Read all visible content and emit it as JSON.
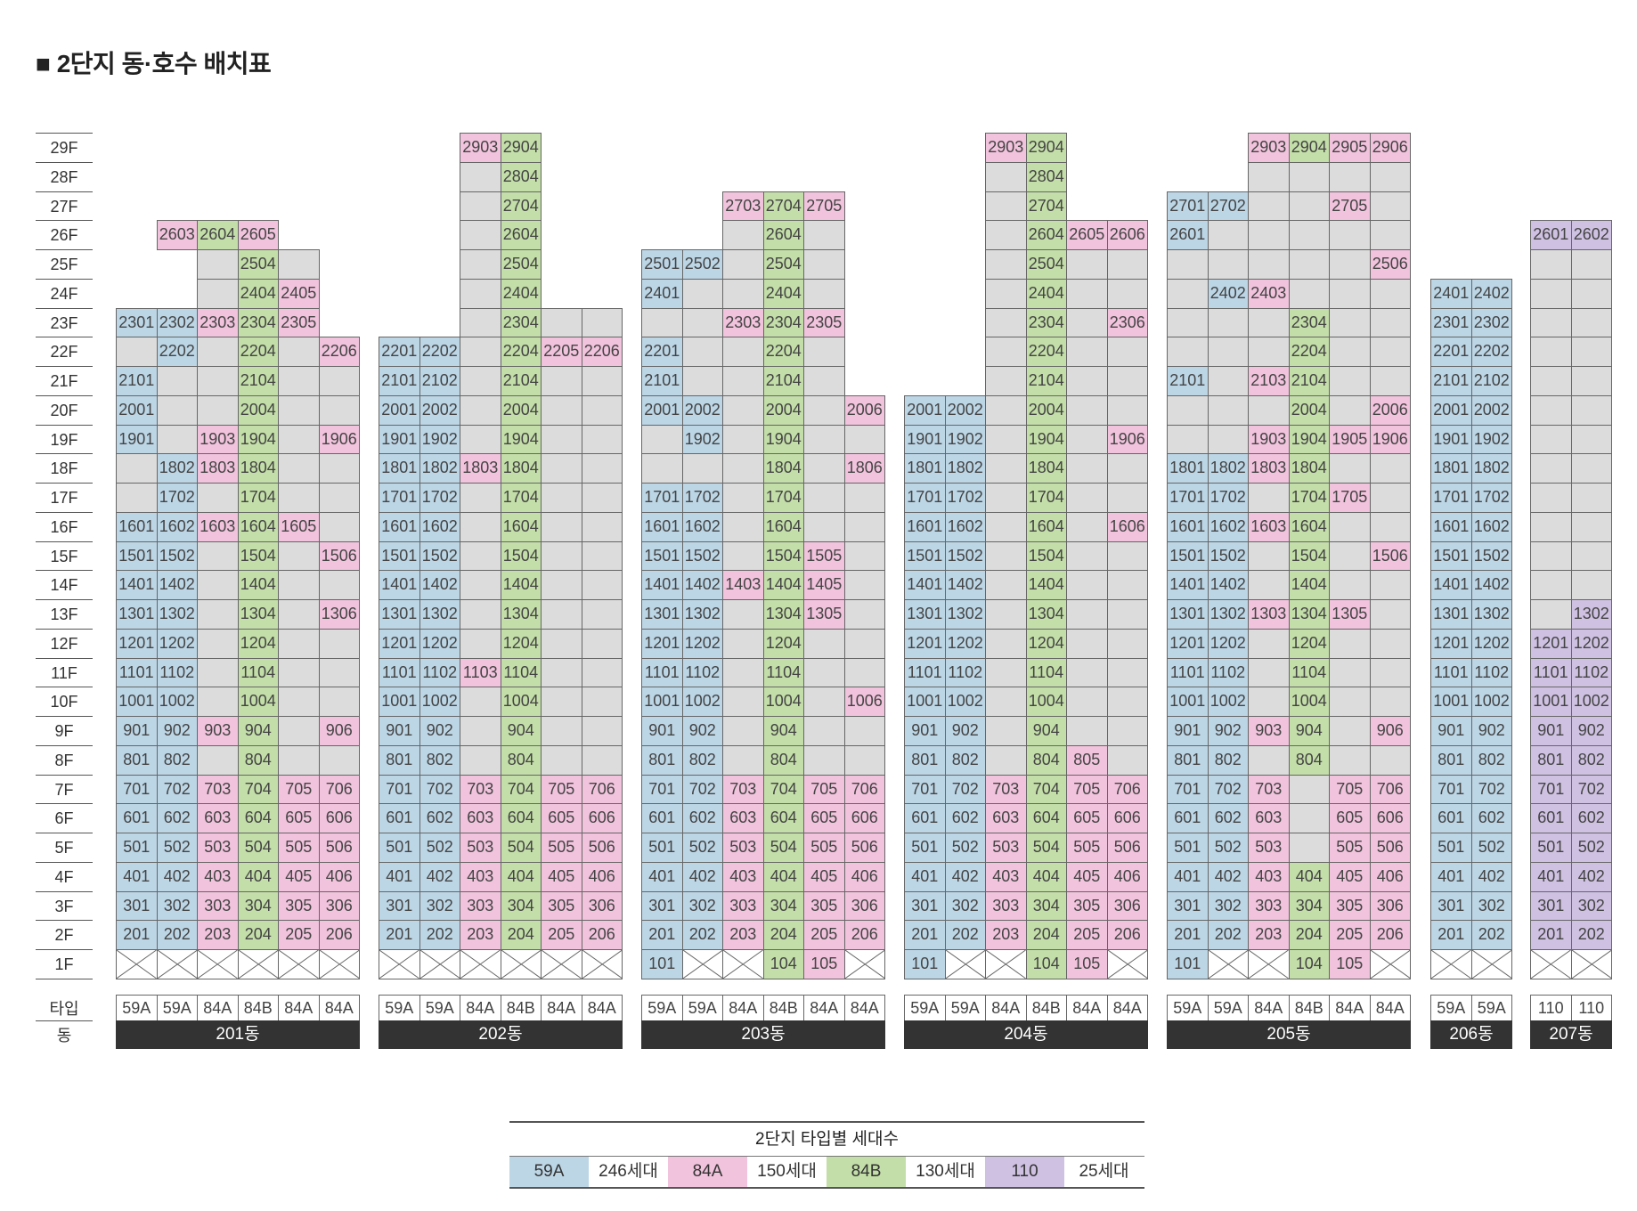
{
  "title": "■ 2단지 동·호수 배치표",
  "floors": [
    "29F",
    "28F",
    "27F",
    "26F",
    "25F",
    "24F",
    "23F",
    "22F",
    "21F",
    "20F",
    "19F",
    "18F",
    "17F",
    "16F",
    "15F",
    "14F",
    "13F",
    "12F",
    "11F",
    "10F",
    "9F",
    "8F",
    "7F",
    "6F",
    "5F",
    "4F",
    "3F",
    "2F",
    "1F"
  ],
  "type_row_label": "타입",
  "building_row_label": "동",
  "colors": {
    "59A": "#bcd6e6",
    "84A": "#f1c3dd",
    "84B": "#c3dea8",
    "110": "#cfc1e2",
    "empty": "#dcdcdc",
    "none": "#ffffff",
    "name_bar": "#333333"
  },
  "buildings": [
    {
      "name": "201동",
      "types": [
        "59A",
        "59A",
        "84A",
        "84B",
        "84A",
        "84A"
      ],
      "floors": {
        "26": "xx- xp:2603 xn:2604 xp:2605",
        "25": "xx- xx- xg- xn:2504 xg-",
        "24": "xx- xx- xg- xn:2404 xp:2405",
        "23": "xb:2301 xb:2302 xp:2303 xn:2304 xp:2305",
        "22": "xg- xb:2202 xg- xn:2204 xg- xp:2206",
        "21": "xb:2101 xg- xg- xn:2104 xg- xg-",
        "20": "xb:2001 xg- xg- xn:2004 xg- xg-",
        "19": "xb:1901 xg- xp:1903 xn:1904 xg- xp:1906",
        "18": "xg- xb:1802 xp:1803 xn:1804 xg- xg-",
        "17": "xg- xb:1702 xg- xn:1704 xg- xg-",
        "16": "xb:1601 xb:1602 xp:1603 xn:1604 xp:1605 xg-",
        "15": "xb:1501 xb:1502 xg- xn:1504 xg- xp:1506",
        "14": "xb:1401 xb:1402 xg- xn:1404 xg- xg-",
        "13": "xb:1301 xb:1302 xg- xn:1304 xg- xp:1306",
        "12": "xb:1201 xb:1202 xg- xn:1204 xg- xg-",
        "11": "xb:1101 xb:1102 xg- xn:1104 xg- xg-",
        "10": "xb:1001 xb:1002 xg- xn:1004 xg- xg-",
        "9": "xb:901 xb:902 xp:903 xn:904 xg- xp:906",
        "8": "xb:801 xb:802 xg- xn:804 xg- xg-",
        "7": "S",
        "6": "S",
        "5": "S",
        "4": "S",
        "3": "S",
        "2": "S",
        "1": "xx- xx- xx- xx- xx- xx-"
      }
    },
    {
      "name": "202동",
      "types": [
        "59A",
        "59A",
        "84A",
        "84B",
        "84A",
        "84A"
      ],
      "floors": {
        "29": "xx- xx- xp:2903 xn:2904",
        "28": "xx- xx- xg- xn:2804",
        "27": "xx- xx- xg- xn:2704",
        "26": "xx- xx- xg- xn:2604",
        "25": "xx- xx- xg- xn:2504",
        "24": "xx- xx- xg- xn:2404",
        "23": "xx- xx- xg- xn:2304 xg- xg-",
        "22": "xb:2201 xb:2202 xg- xn:2204 xp:2205 xp:2206",
        "21": "xb:2101 xb:2102 xg- xn:2104 xg- xg-",
        "20": "xb:2001 xb:2002 xg- xn:2004 xg- xg-",
        "19": "xb:1901 xb:1902 xg- xn:1904 xg- xg-",
        "18": "xb:1801 xb:1802 xp:1803 xn:1804 xg- xg-",
        "17": "xb:1701 xb:1702 xg- xn:1704 xg- xg-",
        "16": "xb:1601 xb:1602 xg- xn:1604 xg- xg-",
        "15": "xb:1501 xb:1502 xg- xn:1504 xg- xg-",
        "14": "xb:1401 xb:1402 xg- xn:1404 xg- xg-",
        "13": "xb:1301 xb:1302 xg- xn:1304 xg- xg-",
        "12": "xb:1201 xb:1202 xg- xn:1204 xg- xg-",
        "11": "xb:1101 xb:1102 xp:1103 xn:1104 xg- xg-",
        "10": "xb:1001 xb:1002 xg- xn:1004 xg- xg-",
        "9": "xb:901 xb:902 xg- xn:904 xg- xg-",
        "8": "xb:801 xb:802 xg- xn:804 xg- xg-",
        "7": "S",
        "6": "S",
        "5": "S",
        "4": "S",
        "3": "S",
        "2": "S",
        "1": "xx- xx- xx- xx- xx- xx-"
      }
    },
    {
      "name": "203동",
      "types": [
        "59A",
        "59A",
        "84A",
        "84B",
        "84A",
        "84A"
      ],
      "floors": {
        "27": "xx- xx- xp:2703 xn:2704 xp:2705",
        "26": "xx- xx- xg- xn:2604 xg-",
        "25": "xb:2501 xb:2502 xg- xn:2504 xg-",
        "24": "xb:2401 xg- xg- xn:2404 xg-",
        "23": "xg- xg- xp:2303 xn:2304 xp:2305",
        "22": "xb:2201 xg- xg- xn:2204 xg-",
        "21": "xb:2101 xg- xg- xn:2104 xg-",
        "20": "xb:2001 xb:2002 xg- xn:2004 xg- xp:2006",
        "19": "xg- xb:1902 xg- xn:1904 xg- xg-",
        "18": "xg- xg- xg- xn:1804 xg- xp:1806",
        "17": "xb:1701 xb:1702 xg- xn:1704 xg- xg-",
        "16": "xb:1601 xb:1602 xg- xn:1604 xg- xg-",
        "15": "xb:1501 xb:1502 xg- xn:1504 xp:1505 xg-",
        "14": "xb:1401 xb:1402 xp:1403 xn:1404 xp:1405 xg-",
        "13": "xb:1301 xb:1302 xg- xn:1304 xp:1305 xg-",
        "12": "xb:1201 xb:1202 xg- xn:1204 xg- xg-",
        "11": "xb:1101 xb:1102 xg- xn:1104 xg- xg-",
        "10": "xb:1001 xb:1002 xg- xn:1004 xg- xp:1006",
        "9": "xb:901 xb:902 xg- xn:904 xg- xg-",
        "8": "xb:801 xb:802 xg- xn:804 xg- xg-",
        "7": "S",
        "6": "S",
        "5": "S",
        "4": "S",
        "3": "S",
        "2": "S",
        "1": "xb:101 xx- xx- xn:104 xp:105 xx-"
      }
    },
    {
      "name": "204동",
      "types": [
        "59A",
        "59A",
        "84A",
        "84B",
        "84A",
        "84A"
      ],
      "floors": {
        "29": "xx- xx- xp:2903 xn:2904",
        "28": "xx- xx- xg- xn:2804",
        "27": "xx- xx- xg- xn:2704",
        "26": "xx- xx- xg- xn:2604 xp:2605 xp:2606",
        "25": "xx- xx- xg- xn:2504 xg- xg-",
        "24": "xx- xx- xg- xn:2404 xg- xg-",
        "23": "xx- xx- xg- xn:2304 xg- xp:2306",
        "22": "xx- xx- xg- xn:2204 xg- xg-",
        "21": "xx- xx- xg- xn:2104 xg- xg-",
        "20": "xb:2001 xb:2002 xg- xn:2004 xg- xg-",
        "19": "xb:1901 xb:1902 xg- xn:1904 xg- xp:1906",
        "18": "xb:1801 xb:1802 xg- xn:1804 xg- xg-",
        "17": "xb:1701 xb:1702 xg- xn:1704 xg- xg-",
        "16": "xb:1601 xb:1602 xg- xn:1604 xg- xp:1606",
        "15": "xb:1501 xb:1502 xg- xn:1504 xg- xg-",
        "14": "xb:1401 xb:1402 xg- xn:1404 xg- xg-",
        "13": "xb:1301 xb:1302 xg- xn:1304 xg- xg-",
        "12": "xb:1201 xb:1202 xg- xn:1204 xg- xg-",
        "11": "xb:1101 xb:1102 xg- xn:1104 xg- xg-",
        "10": "xb:1001 xb:1002 xg- xn:1004 xg- xg-",
        "9": "xb:901 xb:902 xg- xn:904 xg- xg-",
        "8": "xb:801 xb:802 xg- xn:804 xp:805 xg-",
        "7": "S",
        "6": "S",
        "5": "S",
        "4": "S",
        "3": "S",
        "2": "S",
        "1": "xb:101 xx- xx- xn:104 xp:105 xx-"
      }
    },
    {
      "name": "205동",
      "types": [
        "59A",
        "59A",
        "84A",
        "84B",
        "84A",
        "84A"
      ],
      "floors": {
        "29": "xx- xx- xp:2903 xn:2904 xp:2905 xp:2906",
        "28": "xx- xx- xg- xg- xg- xg-",
        "27": "xb:2701 xb:2702 xg- xg- xp:2705 xg-",
        "26": "xb:2601 xg- xg- xg- xg- xg-",
        "25": "xg- xg- xg- xg- xg- xp:2506",
        "24": "xg- xb:2402 xp:2403 xg- xg- xg-",
        "23": "xg- xg- xg- xn:2304 xg- xg-",
        "22": "xg- xg- xg- xn:2204 xg- xg-",
        "21": "xb:2101 xg- xp:2103 xn:2104 xg- xg-",
        "20": "xg- xg- xg- xn:2004 xg- xp:2006",
        "19": "xg- xg- xp:1903 xn:1904 xp:1905 xp:1906",
        "18": "xb:1801 xb:1802 xp:1803 xn:1804 xg- xg-",
        "17": "xb:1701 xb:1702 xg- xn:1704 xp:1705 xg-",
        "16": "xb:1601 xb:1602 xp:1603 xn:1604 xg- xg-",
        "15": "xb:1501 xb:1502 xg- xn:1504 xg- xp:1506",
        "14": "xb:1401 xb:1402 xg- xn:1404 xg- xg-",
        "13": "xb:1301 xb:1302 xp:1303 xn:1304 xp:1305 xg-",
        "12": "xb:1201 xb:1202 xg- xn:1204 xg- xg-",
        "11": "xb:1101 xb:1102 xg- xn:1104 xg- xg-",
        "10": "xb:1001 xb:1002 xg- xn:1004 xg- xg-",
        "9": "xb:901 xb:902 xp:903 xn:904 xg- xp:906",
        "8": "xb:801 xb:802 xg- xn:804 xg- xg-",
        "7": "xb:701 xb:702 xp:703 xg- xp:705 xp:706",
        "6": "xb:601 xb:602 xp:603 xg- xp:605 xp:606",
        "5": "xb:501 xb:502 xp:503 xg- xp:505 xp:506",
        "4": "S",
        "3": "S",
        "2": "S",
        "1": "xb:101 xx- xx- xn:104 xp:105 xx-"
      }
    },
    {
      "name": "206동",
      "types": [
        "59A",
        "59A"
      ],
      "floors": {
        "24": "xb:2401 xb:2402",
        "23": "xb:2301 xb:2302",
        "22": "xb:2201 xb:2202",
        "21": "xb:2101 xb:2102",
        "20": "xb:2001 xb:2002",
        "19": "xb:1901 xb:1902",
        "18": "xb:1801 xb:1802",
        "17": "xb:1701 xb:1702",
        "16": "xb:1601 xb:1602",
        "15": "xb:1501 xb:1502",
        "14": "xb:1401 xb:1402",
        "13": "xb:1301 xb:1302",
        "12": "xb:1201 xb:1202",
        "11": "xb:1101 xb:1102",
        "10": "xb:1001 xb:1002",
        "9": "xb:901 xb:902",
        "8": "xb:801 xb:802",
        "7": "xb:701 xb:702",
        "6": "xb:601 xb:602",
        "5": "xb:501 xb:502",
        "4": "xb:401 xb:402",
        "3": "xb:301 xb:302",
        "2": "xb:201 xb:202",
        "1": "xx- xx-"
      }
    },
    {
      "name": "207동",
      "types": [
        "110",
        "110"
      ],
      "floors": {
        "26": "xv:2601 xv:2602",
        "25": "xg- xg-",
        "24": "xg- xg-",
        "23": "xg- xg-",
        "22": "xg- xg-",
        "21": "xg- xg-",
        "20": "xg- xg-",
        "19": "xg- xg-",
        "18": "xg- xg-",
        "17": "xg- xg-",
        "16": "xg- xg-",
        "15": "xg- xg-",
        "14": "xg- xg-",
        "13": "xg- xv:1302",
        "12": "xv:1201 xv:1202",
        "11": "xv:1101 xv:1102",
        "10": "xv:1001 xv:1002",
        "9": "xv:901 xv:902",
        "8": "xv:801 xv:802",
        "7": "xv:701 xv:702",
        "6": "xv:601 xv:602",
        "5": "xv:501 xv:502",
        "4": "xv:401 xv:402",
        "3": "xv:301 xv:302",
        "2": "xv:201 xv:202",
        "1": "xx- xx-"
      }
    }
  ],
  "legend": {
    "title": "2단지 타입별 세대수",
    "items": [
      {
        "type": "59A",
        "count": "246세대",
        "color": "#bcd6e6"
      },
      {
        "type": "84A",
        "count": "150세대",
        "color": "#f1c3dd"
      },
      {
        "type": "84B",
        "count": "130세대",
        "color": "#c3dea8"
      },
      {
        "type": "110",
        "count": "25세대",
        "color": "#cfc1e2"
      }
    ]
  }
}
